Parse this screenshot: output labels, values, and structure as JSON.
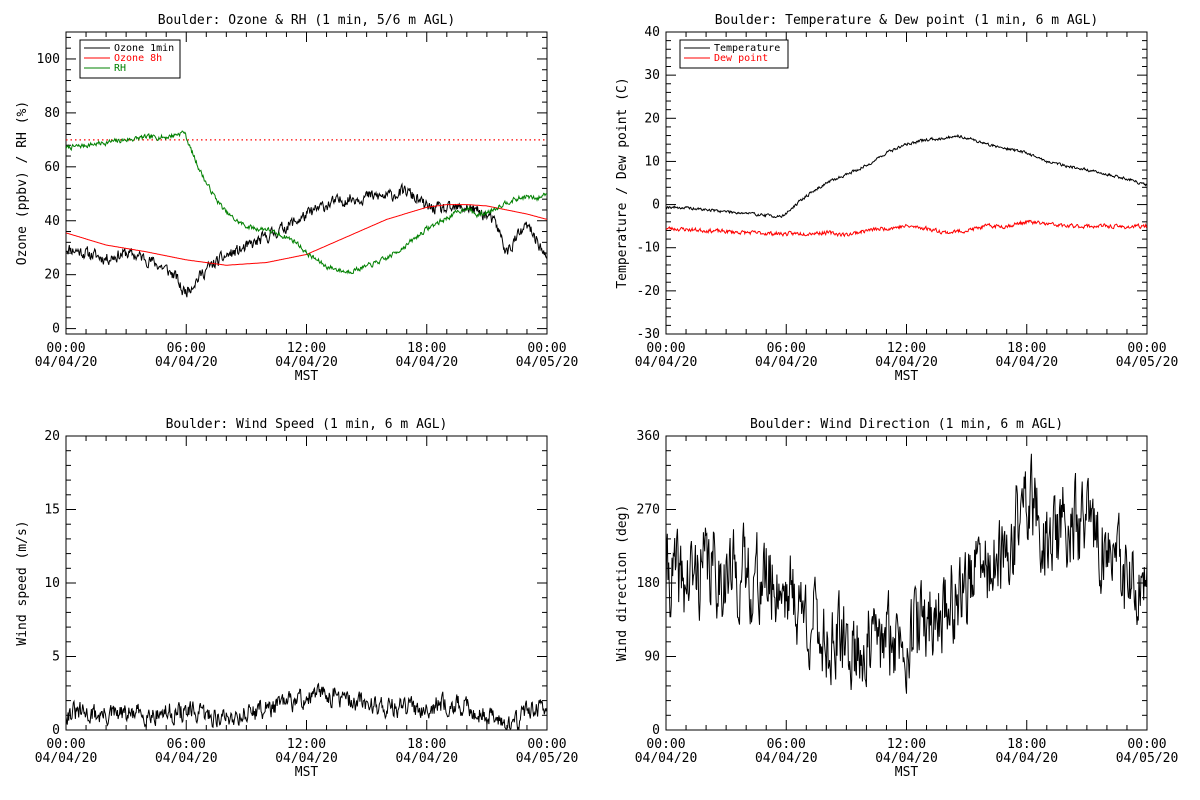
{
  "page": {
    "x_axis_label": "MST"
  },
  "chart_data": [
    {
      "id": "ozone-rh",
      "type": "line",
      "title": "Boulder: Ozone & RH (1 min, 5/6 m AGL)",
      "xlabel": "MST",
      "ylabel": "Ozone (ppbv) / RH (%)",
      "xlim": [
        0,
        24
      ],
      "ylim": [
        -2,
        110
      ],
      "y_ticks": [
        0,
        20,
        40,
        60,
        80,
        100
      ],
      "x_ticks": [
        {
          "t": 0,
          "time": "00:00",
          "date": "04/04/20"
        },
        {
          "t": 6,
          "time": "06:00",
          "date": "04/04/20"
        },
        {
          "t": 12,
          "time": "12:00",
          "date": "04/04/20"
        },
        {
          "t": 18,
          "time": "18:00",
          "date": "04/04/20"
        },
        {
          "t": 24,
          "time": "00:00",
          "date": "04/05/20"
        }
      ],
      "legend": {
        "placement": "top-left"
      },
      "reference_lines": [
        {
          "y": 70,
          "color": "#ff0000",
          "style": "dotted"
        }
      ],
      "series": [
        {
          "name": "Ozone 1min",
          "color": "#000000",
          "noise": 2.0,
          "seed": 11,
          "x": [
            0,
            1,
            2,
            3,
            4,
            5,
            5.5,
            5.8,
            6,
            6.5,
            7,
            8,
            9,
            10,
            11,
            12,
            13,
            14,
            15,
            16,
            17,
            18,
            19,
            20,
            21,
            21.5,
            22,
            22.5,
            23,
            23.5,
            24
          ],
          "y": [
            30,
            28,
            26,
            28,
            26,
            22,
            19,
            14,
            14,
            18,
            22,
            27,
            30,
            34,
            38,
            42,
            46,
            48,
            49,
            49,
            51,
            45,
            44,
            45,
            42,
            38,
            28,
            34,
            38,
            33,
            25
          ]
        },
        {
          "name": "Ozone 8h",
          "color": "#ff0000",
          "noise": 0,
          "seed": 3,
          "x": [
            0,
            2,
            4,
            6,
            8,
            10,
            12,
            14,
            16,
            18,
            19,
            20,
            21,
            22,
            23,
            24
          ],
          "y": [
            35.5,
            31,
            28.5,
            25.5,
            23.5,
            24.5,
            27.5,
            34,
            40.5,
            45,
            46,
            46,
            45.5,
            44,
            42.5,
            40.5
          ]
        },
        {
          "name": "RH",
          "color": "#008000",
          "noise": 0.8,
          "seed": 7,
          "x": [
            0,
            1,
            2,
            3,
            4,
            5,
            5.5,
            5.9,
            6.2,
            6.6,
            7,
            7.5,
            8,
            8.5,
            9,
            9.5,
            10,
            10.5,
            11,
            11.5,
            12,
            13,
            14,
            15,
            16,
            17,
            18,
            19,
            20,
            20.5,
            21,
            22,
            23,
            23.5,
            23.9,
            24
          ],
          "y": [
            67,
            68,
            69,
            70,
            71,
            71,
            72,
            73,
            67,
            60,
            54,
            48,
            43,
            40,
            38,
            37,
            37,
            35,
            34,
            32,
            28,
            23,
            21,
            23,
            26,
            31,
            37,
            41,
            45,
            42,
            43,
            47,
            49,
            48,
            50,
            50
          ]
        }
      ]
    },
    {
      "id": "temp-dew",
      "type": "line",
      "title": "Boulder: Temperature & Dew point (1 min, 6 m AGL)",
      "xlabel": "MST",
      "ylabel": "Temperature / Dew point (C)",
      "xlim": [
        0,
        24
      ],
      "ylim": [
        -30,
        40
      ],
      "y_ticks": [
        -30,
        -20,
        -10,
        0,
        10,
        20,
        30,
        40
      ],
      "x_ticks": [
        {
          "t": 0,
          "time": "00:00",
          "date": "04/04/20"
        },
        {
          "t": 6,
          "time": "06:00",
          "date": "04/04/20"
        },
        {
          "t": 12,
          "time": "12:00",
          "date": "04/04/20"
        },
        {
          "t": 18,
          "time": "18:00",
          "date": "04/04/20"
        },
        {
          "t": 24,
          "time": "00:00",
          "date": "04/05/20"
        }
      ],
      "legend": {
        "placement": "top-left"
      },
      "reference_lines": [],
      "series": [
        {
          "name": "Temperature",
          "color": "#000000",
          "noise": 0.3,
          "seed": 19,
          "x": [
            0,
            1,
            2,
            3,
            4,
            5,
            5.8,
            6.5,
            7,
            8,
            9,
            10,
            11,
            12,
            13,
            14,
            14.5,
            15,
            16,
            17,
            18,
            19,
            20,
            21,
            22,
            23,
            24
          ],
          "y": [
            -0.5,
            -0.8,
            -1.2,
            -1.6,
            -2,
            -2.5,
            -2.8,
            0,
            2,
            5,
            7,
            9,
            12,
            14,
            15,
            15.5,
            16,
            15.5,
            14,
            13,
            12,
            10,
            9,
            8,
            7,
            6,
            4.5
          ]
        },
        {
          "name": "Dew point",
          "color": "#ff0000",
          "noise": 0.4,
          "seed": 23,
          "x": [
            0,
            2,
            4,
            6,
            8,
            9,
            10,
            12,
            13,
            14,
            15,
            16,
            17,
            18,
            19,
            20,
            21,
            22,
            23,
            24
          ],
          "y": [
            -5.5,
            -6,
            -6.5,
            -6.8,
            -6.5,
            -7,
            -6,
            -5,
            -5.5,
            -6.5,
            -6,
            -5,
            -5,
            -4,
            -4.5,
            -5,
            -5,
            -5,
            -5.2,
            -5
          ]
        }
      ]
    },
    {
      "id": "wind-speed",
      "type": "line",
      "title": "Boulder: Wind Speed (1 min, 6 m AGL)",
      "xlabel": "MST",
      "ylabel": "Wind speed (m/s)",
      "xlim": [
        0,
        24
      ],
      "ylim": [
        0,
        20
      ],
      "y_ticks": [
        0,
        5,
        10,
        15,
        20
      ],
      "x_ticks": [
        {
          "t": 0,
          "time": "00:00",
          "date": "04/04/20"
        },
        {
          "t": 6,
          "time": "06:00",
          "date": "04/04/20"
        },
        {
          "t": 12,
          "time": "12:00",
          "date": "04/04/20"
        },
        {
          "t": 18,
          "time": "18:00",
          "date": "04/04/20"
        },
        {
          "t": 24,
          "time": "00:00",
          "date": "04/05/20"
        }
      ],
      "legend": null,
      "reference_lines": [],
      "series": [
        {
          "name": "",
          "color": "#000000",
          "noise": 0.6,
          "seed": 31,
          "min": 0,
          "x": [
            0,
            2,
            4,
            6,
            8,
            10,
            11,
            12,
            13,
            14,
            15,
            16,
            17,
            18,
            19,
            20,
            21,
            22,
            22.5,
            23,
            24
          ],
          "y": [
            1.2,
            1,
            1.1,
            1.2,
            0.8,
            1.5,
            1.8,
            2.2,
            2.5,
            2,
            1.8,
            1.6,
            1.5,
            1.6,
            1.8,
            1.5,
            1,
            0.5,
            0.6,
            1.5,
            1.2
          ]
        }
      ]
    },
    {
      "id": "wind-direction",
      "type": "line",
      "title": "Boulder: Wind Direction (1 min, 6 m AGL)",
      "xlabel": "MST",
      "ylabel": "Wind direction (deg)",
      "xlim": [
        0,
        24
      ],
      "ylim": [
        0,
        360
      ],
      "y_ticks": [
        0,
        90,
        180,
        270,
        360
      ],
      "x_ticks": [
        {
          "t": 0,
          "time": "00:00",
          "date": "04/04/20"
        },
        {
          "t": 6,
          "time": "06:00",
          "date": "04/04/20"
        },
        {
          "t": 12,
          "time": "12:00",
          "date": "04/04/20"
        },
        {
          "t": 18,
          "time": "18:00",
          "date": "04/04/20"
        },
        {
          "t": 24,
          "time": "00:00",
          "date": "04/05/20"
        }
      ],
      "legend": null,
      "reference_lines": [],
      "series": [
        {
          "name": "",
          "color": "#000000",
          "noise": 45,
          "seed": 41,
          "min": 5,
          "max": 355,
          "x": [
            0,
            1,
            2,
            3,
            4,
            5,
            6,
            7,
            8,
            9,
            10,
            11,
            12,
            13,
            14,
            15,
            16,
            17,
            17.5,
            18,
            19,
            20,
            21,
            22,
            23,
            24
          ],
          "y": [
            190,
            180,
            200,
            190,
            190,
            180,
            175,
            140,
            110,
            100,
            100,
            110,
            115,
            135,
            150,
            180,
            200,
            200,
            250,
            290,
            230,
            250,
            250,
            220,
            180,
            150
          ]
        }
      ]
    }
  ]
}
